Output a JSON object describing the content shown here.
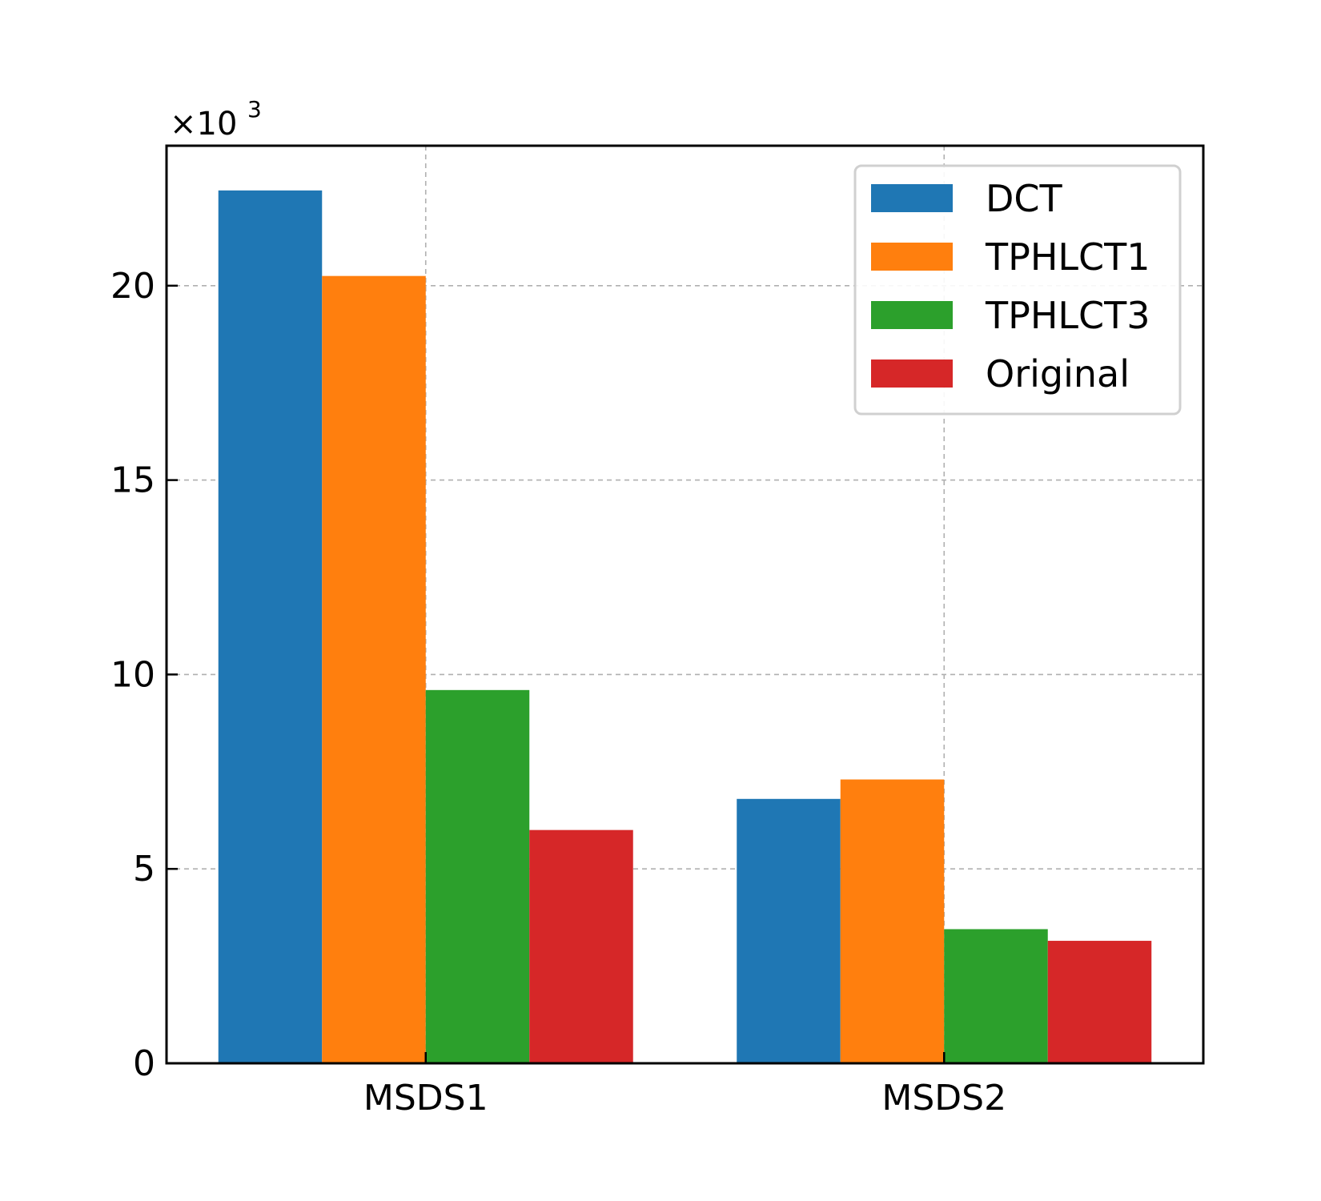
{
  "chart_data": {
    "type": "bar",
    "categories": [
      "MSDS1",
      "MSDS2"
    ],
    "series": [
      {
        "name": "DCT",
        "values": [
          22.45,
          6.8
        ],
        "color": "#1f77b4"
      },
      {
        "name": "TPHLCT1",
        "values": [
          20.25,
          7.3
        ],
        "color": "#ff7f0e"
      },
      {
        "name": "TPHLCT3",
        "values": [
          9.6,
          3.45
        ],
        "color": "#2ca02c"
      },
      {
        "name": "Original",
        "values": [
          6.0,
          3.15
        ],
        "color": "#d62728"
      }
    ],
    "title": "",
    "xlabel": "",
    "ylabel": "",
    "ylim": [
      0,
      23.6
    ],
    "yticks": [
      0,
      5,
      10,
      15,
      20
    ],
    "ytick_labels": [
      "0",
      "5",
      "10",
      "15",
      "20"
    ],
    "y_multiplier": {
      "base": "×10",
      "exponent": "3"
    },
    "grid": true,
    "legend_position": "upper right"
  }
}
